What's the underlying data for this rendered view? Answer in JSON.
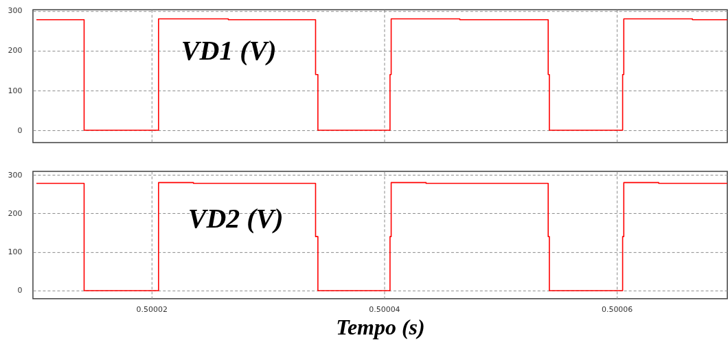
{
  "chart_data": [
    {
      "type": "line",
      "xlim": [
        0.5000098,
        0.5000695
      ],
      "xticks": [
        0.50002,
        0.50004,
        0.50006
      ],
      "ylim": [
        -31,
        303
      ],
      "yticks": [
        0,
        100,
        200,
        300
      ],
      "grid": true,
      "tick_labels": "y",
      "annotations": [
        "VD1 (V)"
      ],
      "x": [
        0.5000101,
        0.5000142,
        0.5000142,
        0.5000206,
        0.5000206,
        0.5000266,
        0.5000266,
        0.5000341,
        0.5000341,
        0.5000343,
        0.5000343,
        0.5000405,
        0.5000405,
        0.5000406,
        0.5000406,
        0.5000465,
        0.5000465,
        0.5000541,
        0.5000541,
        0.5000542,
        0.5000542,
        0.5000605,
        0.5000605,
        0.5000606,
        0.5000606,
        0.5000665,
        0.5000665,
        0.5000695
      ],
      "series": [
        {
          "color": "#ff0000",
          "values": [
            278,
            278,
            0,
            0,
            280,
            280,
            278,
            278,
            140,
            140,
            0,
            0,
            140,
            140,
            280,
            280,
            278,
            278,
            140,
            140,
            0,
            0,
            140,
            140,
            280,
            280,
            278,
            278
          ]
        }
      ]
    },
    {
      "type": "line",
      "xlim": [
        0.5000098,
        0.5000695
      ],
      "xticks": [
        0.50002,
        0.50004,
        0.50006
      ],
      "ylim": [
        -21,
        309
      ],
      "yticks": [
        0,
        100,
        200,
        300
      ],
      "grid": true,
      "xlabel": "Tempo (s)",
      "annotations": [
        "VD2 (V)"
      ],
      "x": [
        0.5000101,
        0.5000142,
        0.5000142,
        0.5000206,
        0.5000206,
        0.5000236,
        0.5000236,
        0.5000341,
        0.5000341,
        0.5000343,
        0.5000343,
        0.5000405,
        0.5000405,
        0.5000406,
        0.5000406,
        0.5000436,
        0.5000436,
        0.5000541,
        0.5000541,
        0.5000542,
        0.5000542,
        0.5000605,
        0.5000605,
        0.5000606,
        0.5000606,
        0.5000636,
        0.5000636,
        0.5000695
      ],
      "series": [
        {
          "color": "#ff0000",
          "values": [
            278,
            278,
            0,
            0,
            280,
            280,
            278,
            278,
            140,
            140,
            0,
            0,
            140,
            140,
            280,
            280,
            278,
            278,
            140,
            140,
            0,
            0,
            140,
            140,
            280,
            280,
            278,
            278
          ]
        }
      ]
    }
  ]
}
